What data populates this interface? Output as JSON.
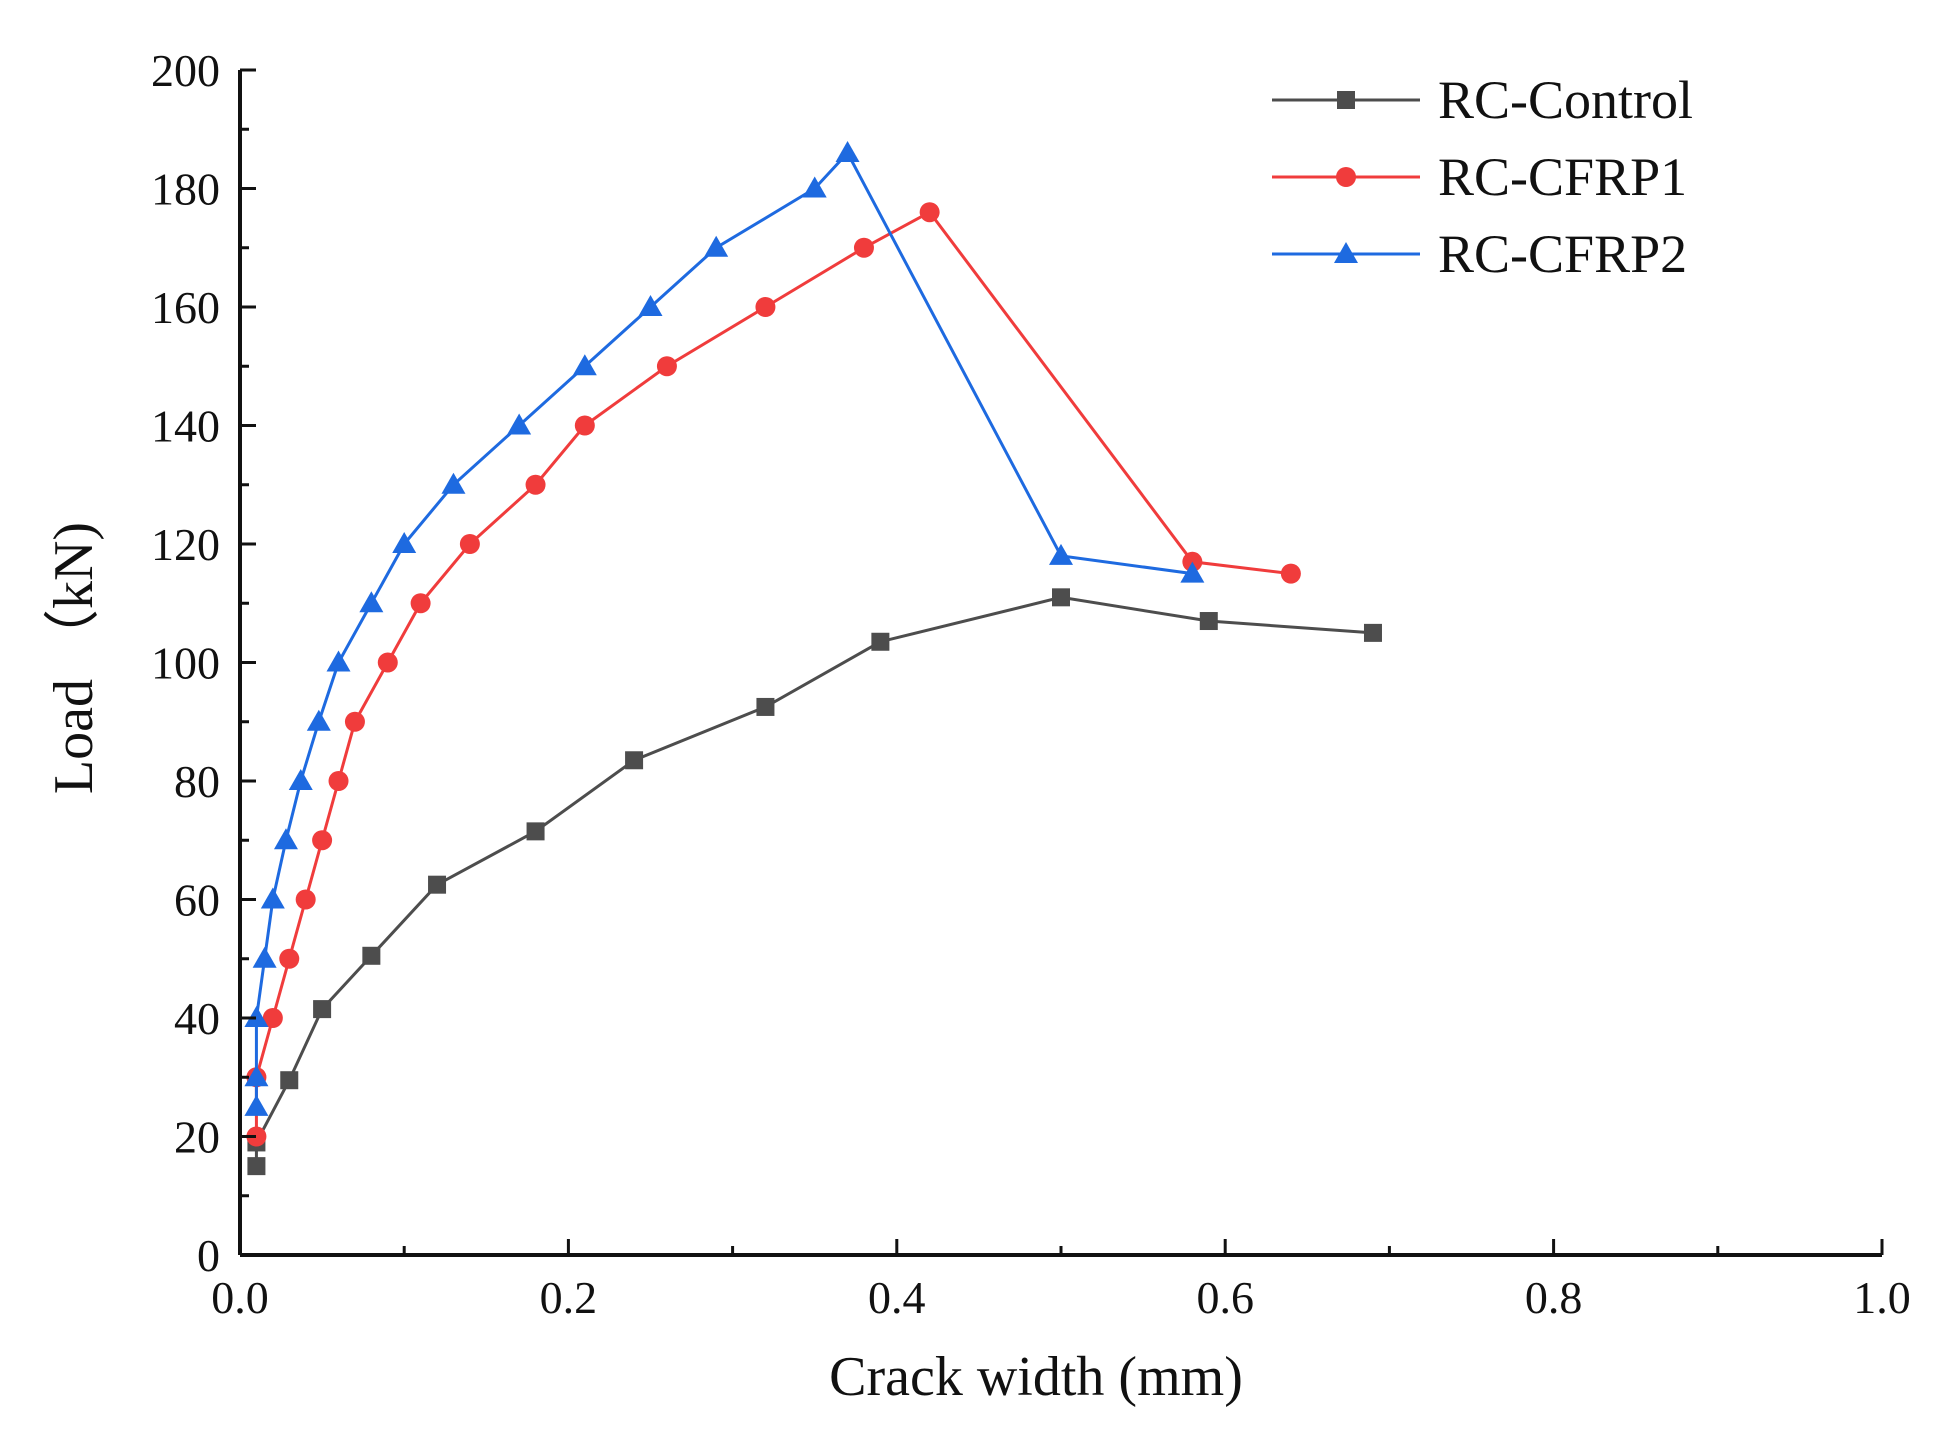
{
  "chart_data": {
    "type": "line",
    "title": "",
    "xlabel": "Crack width (mm)",
    "ylabel": "Load （kN)",
    "xlim": [
      0.0,
      1.0
    ],
    "ylim": [
      0,
      200
    ],
    "xticks": [
      0.0,
      0.2,
      0.4,
      0.6,
      0.8,
      1.0
    ],
    "xtick_labels": [
      "0.0",
      "0.2",
      "0.4",
      "0.6",
      "0.8",
      "1.0"
    ],
    "yticks": [
      0,
      20,
      40,
      60,
      80,
      100,
      120,
      140,
      160,
      180,
      200
    ],
    "ytick_labels": [
      "0",
      "20",
      "40",
      "60",
      "80",
      "100",
      "120",
      "140",
      "160",
      "180",
      "200"
    ],
    "grid": false,
    "legend_position": "top-right",
    "series": [
      {
        "name": "RC-Control",
        "color": "#4d4d4d",
        "marker": "square",
        "x": [
          0.01,
          0.01,
          0.03,
          0.05,
          0.08,
          0.12,
          0.18,
          0.24,
          0.32,
          0.39,
          0.5,
          0.59,
          0.69
        ],
        "y": [
          15,
          19,
          29.5,
          41.5,
          50.5,
          62.5,
          71.5,
          83.5,
          92.5,
          103.5,
          111,
          107,
          105
        ]
      },
      {
        "name": "RC-CFRP1",
        "color": "#f03c3c",
        "marker": "circle",
        "x": [
          0.01,
          0.01,
          0.02,
          0.03,
          0.04,
          0.05,
          0.06,
          0.07,
          0.09,
          0.11,
          0.14,
          0.18,
          0.21,
          0.26,
          0.32,
          0.38,
          0.42,
          0.58,
          0.64
        ],
        "y": [
          20,
          30,
          40,
          50,
          60,
          70,
          80,
          90,
          100,
          110,
          120,
          130,
          140,
          150,
          160,
          170,
          176,
          117,
          115
        ]
      },
      {
        "name": "RC-CFRP2",
        "color": "#1e6ae0",
        "marker": "triangle",
        "x": [
          0.01,
          0.01,
          0.01,
          0.015,
          0.02,
          0.028,
          0.037,
          0.048,
          0.06,
          0.08,
          0.1,
          0.13,
          0.17,
          0.21,
          0.25,
          0.29,
          0.35,
          0.37,
          0.5,
          0.58
        ],
        "y": [
          25,
          30,
          40,
          50,
          60,
          70,
          80,
          90,
          100,
          110,
          120,
          130,
          140,
          150,
          160,
          170,
          180,
          186,
          118,
          115
        ]
      }
    ]
  }
}
